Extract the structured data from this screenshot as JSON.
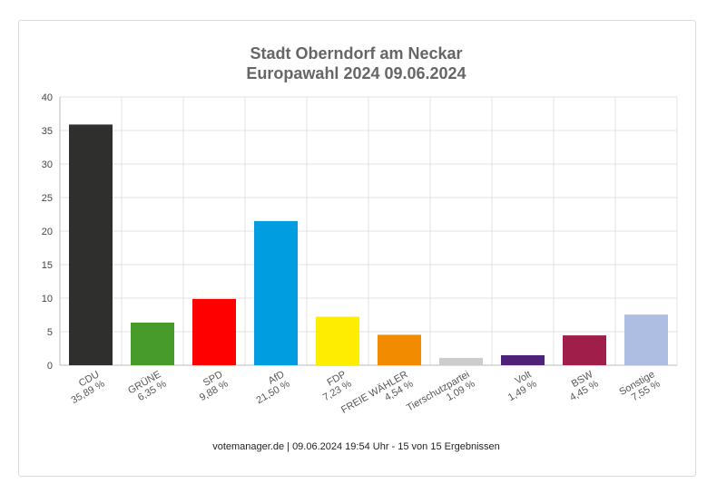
{
  "chart_data": {
    "type": "bar",
    "title": "Stadt Oberndorf am Neckar",
    "subtitle": "Europawahl 2024 09.06.2024",
    "categories": [
      "CDU",
      "GRÜNE",
      "SPD",
      "AfD",
      "FDP",
      "FREIE WÄHLER",
      "Tierschutzpartei",
      "Volt",
      "BSW",
      "Sonstige"
    ],
    "values": [
      35.89,
      6.35,
      9.88,
      21.5,
      7.23,
      4.54,
      1.09,
      1.49,
      4.45,
      7.55
    ],
    "value_labels": [
      "35,89 %",
      "6,35 %",
      "9,88 %",
      "21,50 %",
      "7,23 %",
      "4,54 %",
      "1,09 %",
      "1,49 %",
      "4,45 %",
      "7,55 %"
    ],
    "colors": [
      "#2f2f2d",
      "#479b2a",
      "#fe0000",
      "#009ee0",
      "#ffed00",
      "#f28b00",
      "#cccccc",
      "#4f2277",
      "#a01f4a",
      "#aebde2"
    ],
    "ylim": [
      0,
      40
    ],
    "yticks": [
      0,
      5,
      10,
      15,
      20,
      25,
      30,
      35,
      40
    ],
    "grid": true
  },
  "footer": "votemanager.de | 09.06.2024 19:54 Uhr - 15 von 15 Ergebnissen"
}
